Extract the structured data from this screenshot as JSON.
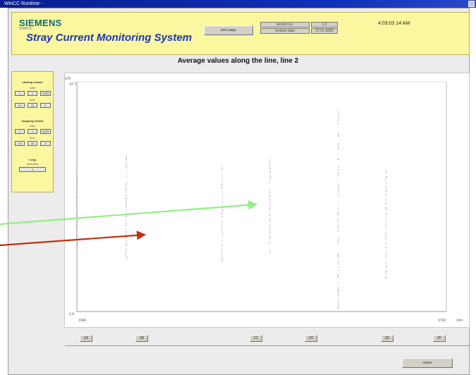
{
  "window": {
    "title": "WinCC Runtime -"
  },
  "header": {
    "brand": "SIEMENS",
    "brand_sub": "SIMATIC",
    "app_title": "Stray Current Monitoring System",
    "print_button": "print page",
    "version_label": "version no.",
    "version_value": "1.0",
    "revision_label": "revision date",
    "revision_value": "27.01.2003",
    "clock": "4:03:03  14 AM"
  },
  "chart_title": "Average values along the line, line 2",
  "left_panel": {
    "start_heading": "starting instant",
    "start_date_label": "date",
    "start_date": [
      "1",
      "1",
      "2003"
    ],
    "start_time_label": "time",
    "start_time": [
      "14",
      "43",
      "0"
    ],
    "stop_heading": "stopping instant",
    "stop_date_label": "date",
    "stop_date": [
      "1",
      "1",
      "2003"
    ],
    "stop_time_label": "time",
    "stop_time": [
      "14",
      "43",
      "3"
    ],
    "interval_heading": "t step",
    "interval_unit": "(minutes)",
    "interval_value": "0"
  },
  "station_buttons": [
    "ZA",
    "ZB",
    "ZC",
    "ZD",
    "ZE",
    "ZF"
  ],
  "return_button": "return",
  "chart_data": {
    "type": "scatter",
    "title": "Average values along the line, line 2",
    "ylabel": "U/V",
    "xlabel": "X/m",
    "ylim": [
      1.4,
      12.7
    ],
    "xlim": [
      1040,
      3743
    ],
    "y_ticks": [
      "12.7",
      "1.4"
    ],
    "x_ticks": [
      "1040",
      "3743"
    ],
    "grid": false,
    "series": [
      {
        "x": 1040,
        "y_range": [
          4.5,
          8.5
        ]
      },
      {
        "x": 1400,
        "y_range": [
          4.0,
          9.2
        ]
      },
      {
        "x": 2100,
        "y_range": [
          3.8,
          8.6
        ]
      },
      {
        "x": 2450,
        "y_range": [
          4.2,
          9.2
        ]
      },
      {
        "x": 2950,
        "y_range": [
          1.5,
          11.4
        ]
      },
      {
        "x": 3300,
        "y_range": [
          3.0,
          8.4
        ]
      }
    ]
  },
  "annotations": {
    "green_arrow_color": "#90f080",
    "red_arrow_color": "#c03010"
  }
}
